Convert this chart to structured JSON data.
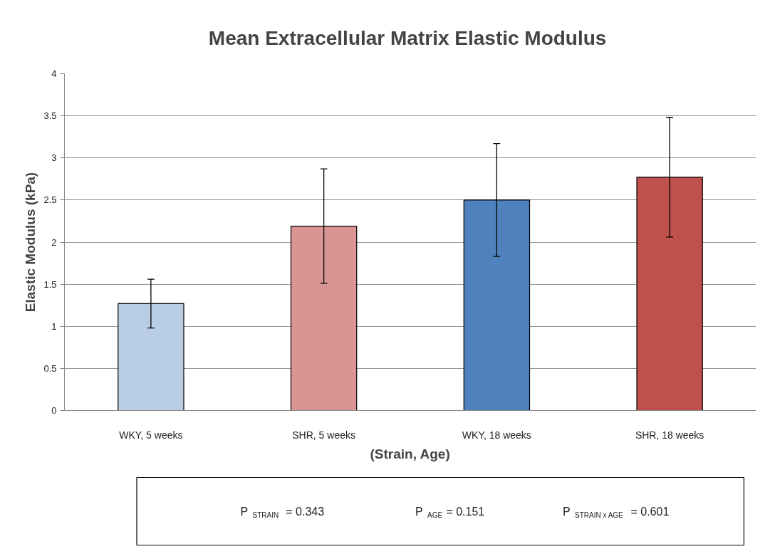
{
  "chart_data": {
    "type": "bar",
    "title": "Mean Extracellular  Matrix Elastic Modulus",
    "xlabel": "(Strain, Age)",
    "ylabel": "Elastic Modulus (kPa)",
    "categories": [
      "WKY, 5 weeks",
      "SHR, 5 weeks",
      "WKY, 18 weeks",
      "SHR, 18 weeks"
    ],
    "values": [
      1.27,
      2.19,
      2.5,
      2.77
    ],
    "errors": [
      0.29,
      0.68,
      0.67,
      0.71
    ],
    "colors": [
      "#b9cde5",
      "#d99594",
      "#4f81bd",
      "#c0504d"
    ],
    "ylim": [
      0,
      4
    ],
    "yticks": [
      0,
      0.5,
      1,
      1.5,
      2,
      2.5,
      3,
      3.5,
      4
    ],
    "grid": "y",
    "annotations": [
      "P$_{STRAIN}$ =  0.343",
      "P$_{AGE}$ = 0.151",
      "P$_{STRAIN x AGE}$ = 0.601"
    ]
  }
}
